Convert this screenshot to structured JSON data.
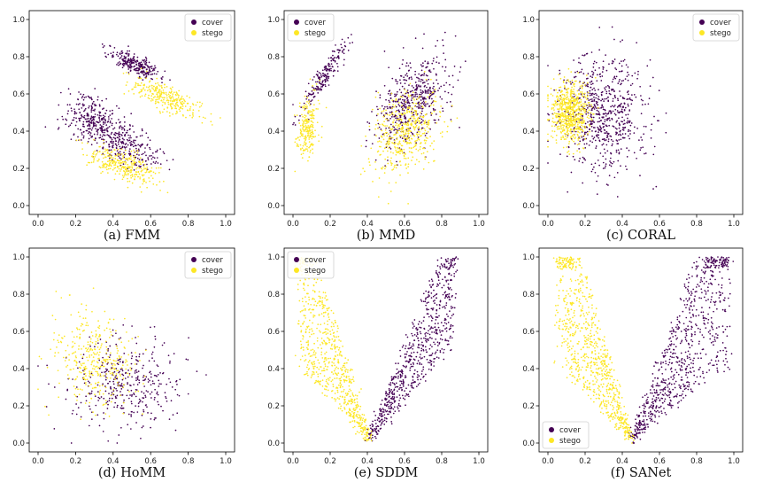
{
  "chart_data": [
    {
      "type": "scatter",
      "caption": "(a) FMM",
      "xlim": [
        0.0,
        1.0
      ],
      "ylim": [
        0.0,
        1.0
      ],
      "xticks": [
        "0.0",
        "0.2",
        "0.4",
        "0.6",
        "0.8",
        "1.0"
      ],
      "yticks": [
        "0.0",
        "0.2",
        "0.4",
        "0.6",
        "0.8",
        "1.0"
      ],
      "legend_position": "top-right",
      "series": [
        {
          "name": "cover",
          "color": "#440154",
          "clusters": [
            {
              "cx": 0.52,
              "cy": 0.76,
              "sx": 0.07,
              "sy": 0.04,
              "rho": -0.75,
              "n": 260
            },
            {
              "cx": 0.3,
              "cy": 0.45,
              "sx": 0.08,
              "sy": 0.07,
              "rho": -0.4,
              "n": 330
            },
            {
              "cx": 0.48,
              "cy": 0.32,
              "sx": 0.09,
              "sy": 0.06,
              "rho": -0.5,
              "n": 220
            }
          ]
        },
        {
          "name": "stego",
          "color": "#fde725",
          "clusters": [
            {
              "cx": 0.68,
              "cy": 0.58,
              "sx": 0.09,
              "sy": 0.05,
              "rho": -0.7,
              "n": 280
            },
            {
              "cx": 0.45,
              "cy": 0.22,
              "sx": 0.09,
              "sy": 0.05,
              "rho": -0.6,
              "n": 320
            }
          ]
        }
      ]
    },
    {
      "type": "scatter",
      "caption": "(b) MMD",
      "xlim": [
        0.0,
        1.0
      ],
      "ylim": [
        0.0,
        1.0
      ],
      "xticks": [
        "0.0",
        "0.2",
        "0.4",
        "0.6",
        "0.8",
        "1.0"
      ],
      "yticks": [
        "0.0",
        "0.2",
        "0.4",
        "0.6",
        "0.8",
        "1.0"
      ],
      "legend_position": "top-left",
      "series": [
        {
          "name": "cover",
          "color": "#440154",
          "clusters": [
            {
              "cx": 0.16,
              "cy": 0.68,
              "sx": 0.06,
              "sy": 0.09,
              "rho": 0.92,
              "n": 200
            },
            {
              "cx": 0.64,
              "cy": 0.56,
              "sx": 0.1,
              "sy": 0.12,
              "rho": 0.45,
              "n": 520
            }
          ]
        },
        {
          "name": "stego",
          "color": "#fde725",
          "clusters": [
            {
              "cx": 0.08,
              "cy": 0.42,
              "sx": 0.03,
              "sy": 0.09,
              "rho": 0.3,
              "n": 220
            },
            {
              "cx": 0.6,
              "cy": 0.4,
              "sx": 0.09,
              "sy": 0.11,
              "rho": 0.3,
              "n": 480
            }
          ]
        }
      ]
    },
    {
      "type": "scatter",
      "caption": "(c) CORAL",
      "xlim": [
        0.0,
        1.0
      ],
      "ylim": [
        0.0,
        1.0
      ],
      "xticks": [
        "0.0",
        "0.2",
        "0.4",
        "0.6",
        "0.8",
        "1.0"
      ],
      "yticks": [
        "0.0",
        "0.2",
        "0.4",
        "0.6",
        "0.8",
        "1.0"
      ],
      "legend_position": "top-right",
      "series": [
        {
          "name": "cover",
          "color": "#440154",
          "clusters": [
            {
              "cx": 0.3,
              "cy": 0.48,
              "sx": 0.12,
              "sy": 0.16,
              "rho": 0.0,
              "n": 700
            }
          ]
        },
        {
          "name": "stego",
          "color": "#fde725",
          "clusters": [
            {
              "cx": 0.12,
              "cy": 0.5,
              "sx": 0.05,
              "sy": 0.08,
              "rho": 0.0,
              "n": 650
            }
          ]
        }
      ]
    },
    {
      "type": "scatter",
      "caption": "(d) HoMM",
      "xlim": [
        0.0,
        1.0
      ],
      "ylim": [
        0.0,
        1.0
      ],
      "xticks": [
        "0.0",
        "0.2",
        "0.4",
        "0.6",
        "0.8",
        "1.0"
      ],
      "yticks": [
        "0.0",
        "0.2",
        "0.4",
        "0.6",
        "0.8",
        "1.0"
      ],
      "legend_position": "top-right",
      "series": [
        {
          "name": "cover",
          "color": "#440154",
          "clusters": [
            {
              "cx": 0.48,
              "cy": 0.33,
              "sx": 0.15,
              "sy": 0.12,
              "rho": 0.05,
              "n": 380
            }
          ]
        },
        {
          "name": "stego",
          "color": "#fde725",
          "clusters": [
            {
              "cx": 0.3,
              "cy": 0.45,
              "sx": 0.11,
              "sy": 0.13,
              "rho": -0.1,
              "n": 360
            }
          ]
        }
      ]
    },
    {
      "type": "scatter",
      "caption": "(e) SDDM",
      "xlim": [
        0.0,
        1.0
      ],
      "ylim": [
        0.0,
        1.0
      ],
      "xticks": [
        "0.0",
        "0.2",
        "0.4",
        "0.6",
        "0.8",
        "1.0"
      ],
      "yticks": [
        "0.0",
        "0.2",
        "0.4",
        "0.6",
        "0.8",
        "1.0"
      ],
      "legend_position": "top-left",
      "series": [
        {
          "name": "cover",
          "color": "#440154",
          "shape": "v-right",
          "vx": 0.41,
          "vy": 0.02,
          "slope_lo": 1.1,
          "slope_hi": 2.6,
          "reach": 0.46,
          "n": 700
        },
        {
          "name": "stego",
          "color": "#fde725",
          "shape": "v-left",
          "vx": 0.41,
          "vy": 0.02,
          "slope_lo": 1.05,
          "slope_hi": 3.4,
          "reach": 0.38,
          "n": 700
        }
      ]
    },
    {
      "type": "scatter",
      "caption": "(f) SANet",
      "xlim": [
        0.0,
        1.0
      ],
      "ylim": [
        0.0,
        1.0
      ],
      "xticks": [
        "0.0",
        "0.2",
        "0.4",
        "0.6",
        "0.8",
        "1.0"
      ],
      "yticks": [
        "0.0",
        "0.2",
        "0.4",
        "0.6",
        "0.8",
        "1.0"
      ],
      "legend_position": "bottom-left",
      "series": [
        {
          "name": "cover",
          "color": "#440154",
          "shape": "v-right",
          "vx": 0.45,
          "vy": 0.02,
          "slope_lo": 0.75,
          "slope_hi": 2.8,
          "reach": 0.52,
          "n": 800
        },
        {
          "name": "stego",
          "color": "#fde725",
          "shape": "v-left",
          "vx": 0.45,
          "vy": 0.02,
          "slope_lo": 1.0,
          "slope_hi": 3.5,
          "reach": 0.4,
          "n": 800
        }
      ]
    }
  ]
}
